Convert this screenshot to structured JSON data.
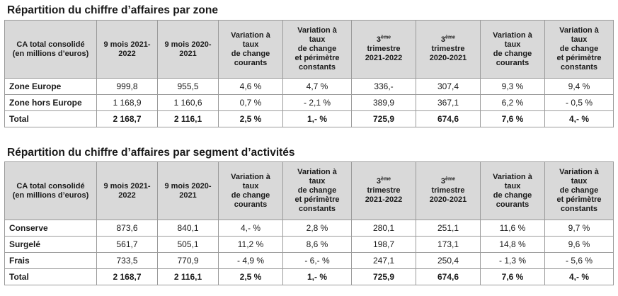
{
  "zone_section": {
    "title": "Répartition du chiffre d’affaires par zone",
    "headers": {
      "c0": [
        "CA total consolidé",
        "(en millions d’euros)"
      ],
      "c1": [
        "9 mois 2021-",
        "2022"
      ],
      "c2": [
        "9 mois 2020-",
        "2021"
      ],
      "c3": [
        "Variation à",
        "taux",
        "de change",
        "courants"
      ],
      "c4": [
        "Variation à",
        "taux",
        "de change",
        "et périmètre",
        "constants"
      ],
      "c5_prefix": "3",
      "c5_sup": "ème",
      "c5": [
        "trimestre",
        "2021-2022"
      ],
      "c6_prefix": "3",
      "c6_sup": "ème",
      "c6": [
        "trimestre",
        "2020-2021"
      ],
      "c7": [
        "Variation à",
        "taux",
        "de change",
        "courants"
      ],
      "c8": [
        "Variation à",
        "taux",
        "de change",
        "et périmètre",
        "constants"
      ]
    },
    "rows": [
      [
        "Zone Europe",
        "999,8",
        "955,5",
        "4,6 %",
        "4,7 %",
        "336,-",
        "307,4",
        "9,3 %",
        "9,4 %"
      ],
      [
        "Zone hors Europe",
        "1 168,9",
        "1 160,6",
        "0,7 %",
        "- 2,1 %",
        "389,9",
        "367,1",
        "6,2 %",
        "- 0,5 %"
      ],
      [
        "Total",
        "2 168,7",
        "2 116,1",
        "2,5 %",
        "1,- %",
        "725,9",
        "674,6",
        "7,6 %",
        "4,- %"
      ]
    ]
  },
  "segment_section": {
    "title": "Répartition du chiffre d’affaires par segment d’activités",
    "headers": {
      "c0": [
        "CA total consolidé",
        "(en millions d’euros)"
      ],
      "c1": [
        "9 mois 2021-",
        "2022"
      ],
      "c2": [
        "9 mois 2020-",
        "2021"
      ],
      "c3": [
        "Variation à",
        "taux",
        "de change",
        "courants"
      ],
      "c4": [
        "Variation à",
        "taux",
        "de change",
        "et périmètre",
        "constants"
      ],
      "c5_prefix": "3",
      "c5_sup": "ème",
      "c5": [
        "trimestre",
        "2021-2022"
      ],
      "c6_prefix": "3",
      "c6_sup": "ème",
      "c6": [
        "trimestre",
        "2020-2021"
      ],
      "c7": [
        "Variation à",
        "taux",
        "de change",
        "courants"
      ],
      "c8": [
        "Variation à",
        "taux",
        "de change",
        "et périmètre",
        "constants"
      ]
    },
    "rows": [
      [
        "Conserve",
        "873,6",
        "840,1",
        "4,- %",
        "2,8 %",
        "280,1",
        "251,1",
        "11,6 %",
        "9,7 %"
      ],
      [
        "Surgelé",
        "561,7",
        "505,1",
        "11,2 %",
        "8,6 %",
        "198,7",
        "173,1",
        "14,8 %",
        "9,6 %"
      ],
      [
        "Frais",
        "733,5",
        "770,9",
        "- 4,9 %",
        "- 6,- %",
        "247,1",
        "250,4",
        "- 1,3 %",
        "- 5,6 %"
      ],
      [
        "Total",
        "2 168,7",
        "2 116,1",
        "2,5 %",
        "1,- %",
        "725,9",
        "674,6",
        "7,6 %",
        "4,- %"
      ]
    ]
  }
}
